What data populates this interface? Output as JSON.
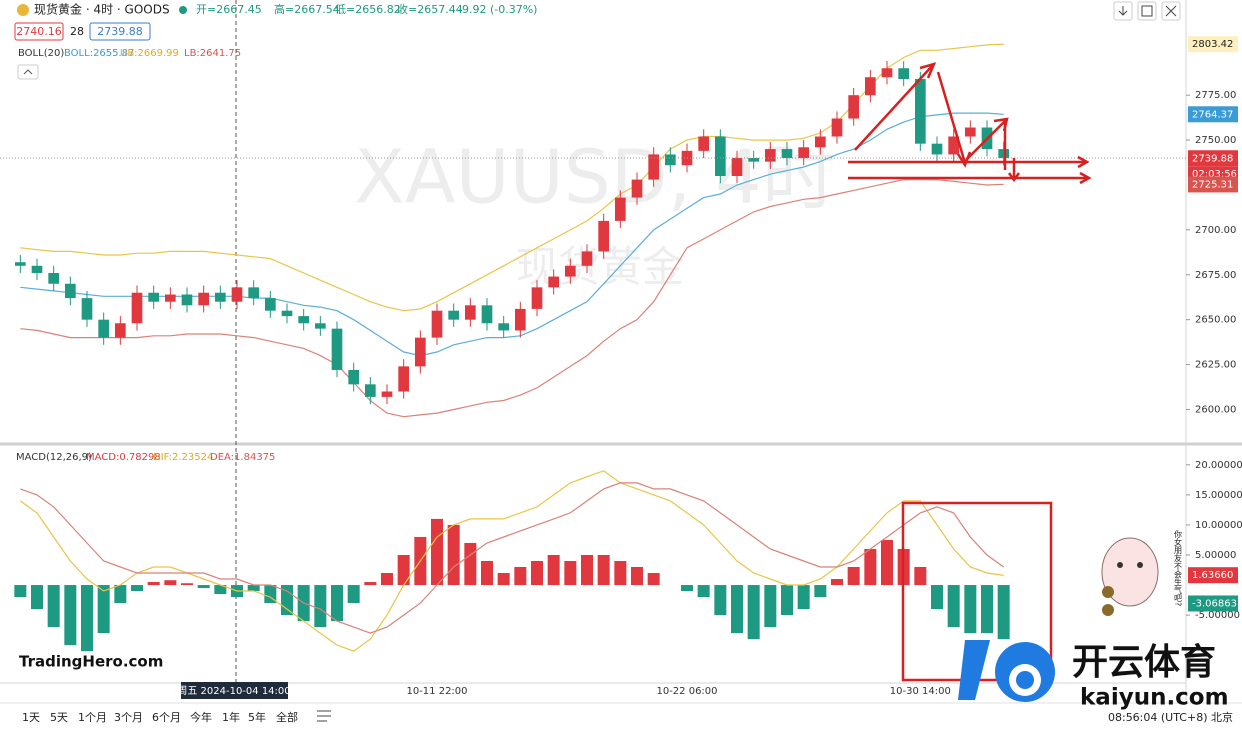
{
  "header": {
    "symbol": "现货黄金 · 4时 · GOODS",
    "ohlc": [
      "开=2667.45",
      "高=2667.54",
      "低=2656.82",
      "收=2657.44",
      "-9.92 (-0.37%)"
    ],
    "sell": "2740.16",
    "spread": "28",
    "buy": "2739.88"
  },
  "watermark": {
    "title": "XAUUSD, 4时",
    "subtitle": "现货黄金"
  },
  "price_legend": [
    {
      "text": "BOLL(20)",
      "color": "#333333"
    },
    {
      "text": "BOLL:2655.87",
      "color": "#3a9bd5"
    },
    {
      "text": "UB:2669.99",
      "color": "#e0a81e"
    },
    {
      "text": "LB:2641.75",
      "color": "#d9534f"
    }
  ],
  "macd_legend": [
    {
      "text": "MACD(12,26,9)",
      "color": "#333333"
    },
    {
      "text": "MACD:0.78298",
      "color": "#e0383e"
    },
    {
      "text": "DIF:2.23524",
      "color": "#e0a81e"
    },
    {
      "text": "DEA:1.84375",
      "color": "#d9534f"
    }
  ],
  "crosshair_label": "周五 2024-10-04 14:00",
  "logo": "TradingHero.com",
  "brand": {
    "name": "开云体育",
    "site": "kaiyun.com"
  },
  "sticker_text": "你女朋友不会生气吧?",
  "toolbar": {
    "ranges": [
      "1天",
      "5天",
      "1个月",
      "3个月",
      "6个月",
      "今年",
      "1年",
      "5年",
      "全部"
    ],
    "clock": "08:56:04 (UTC+8) 北京"
  },
  "chart_data": [
    {
      "type": "candlestick",
      "categories": [
        null,
        null,
        null,
        null,
        null,
        null,
        null,
        null,
        null,
        null,
        null,
        null,
        null,
        null,
        null,
        null,
        null,
        null,
        null,
        null,
        null,
        null,
        null,
        null,
        null,
        "10-11 22:00",
        null,
        null,
        null,
        null,
        null,
        null,
        null,
        null,
        null,
        null,
        null,
        null,
        null,
        null,
        "10-22 06:00",
        null,
        null,
        null,
        null,
        null,
        null,
        null,
        null,
        null,
        null,
        null,
        null,
        null,
        "10-30 14:00",
        null,
        null,
        null,
        null,
        null
      ],
      "open": [
        2682,
        2680,
        2676,
        2670,
        2662,
        2650,
        2640,
        2648,
        2665,
        2660,
        2664,
        2658,
        2665,
        2660,
        2668,
        2662,
        2655,
        2652,
        2648,
        2645,
        2622,
        2614,
        2607,
        2610,
        2624,
        2640,
        2655,
        2650,
        2658,
        2648,
        2644,
        2656,
        2668,
        2674,
        2680,
        2688,
        2705,
        2718,
        2728,
        2742,
        2736,
        2744,
        2752,
        2730,
        2740,
        2738,
        2745,
        2740,
        2746,
        2752,
        2762,
        2775,
        2785,
        2790,
        2784,
        2748,
        2742,
        2752,
        2757,
        2745
      ],
      "high": [
        2686,
        2684,
        2680,
        2674,
        2666,
        2654,
        2652,
        2669,
        2669,
        2668,
        2668,
        2669,
        2669,
        2672,
        2672,
        2666,
        2659,
        2656,
        2652,
        2649,
        2626,
        2618,
        2614,
        2628,
        2644,
        2659,
        2659,
        2662,
        2662,
        2652,
        2660,
        2672,
        2678,
        2684,
        2692,
        2709,
        2722,
        2732,
        2746,
        2746,
        2748,
        2756,
        2756,
        2744,
        2744,
        2749,
        2749,
        2750,
        2756,
        2766,
        2779,
        2789,
        2794,
        2794,
        2788,
        2752,
        2756,
        2761,
        2761,
        2749
      ],
      "low": [
        2676,
        2672,
        2666,
        2658,
        2646,
        2636,
        2636,
        2644,
        2656,
        2656,
        2654,
        2654,
        2656,
        2656,
        2658,
        2651,
        2648,
        2644,
        2641,
        2618,
        2610,
        2603,
        2603,
        2606,
        2620,
        2636,
        2646,
        2646,
        2644,
        2640,
        2640,
        2652,
        2664,
        2670,
        2676,
        2684,
        2701,
        2714,
        2724,
        2732,
        2732,
        2740,
        2726,
        2726,
        2734,
        2734,
        2736,
        2736,
        2742,
        2748,
        2758,
        2771,
        2781,
        2780,
        2744,
        2738,
        2738,
        2748,
        2741,
        2736
      ],
      "close": [
        2680,
        2676,
        2670,
        2662,
        2650,
        2640,
        2648,
        2665,
        2660,
        2664,
        2658,
        2665,
        2660,
        2668,
        2662,
        2655,
        2652,
        2648,
        2645,
        2622,
        2614,
        2607,
        2610,
        2624,
        2640,
        2655,
        2650,
        2658,
        2648,
        2644,
        2656,
        2668,
        2674,
        2680,
        2688,
        2705,
        2718,
        2728,
        2742,
        2736,
        2744,
        2752,
        2730,
        2740,
        2738,
        2745,
        2740,
        2746,
        2752,
        2762,
        2775,
        2785,
        2790,
        2784,
        2748,
        2742,
        2752,
        2757,
        2745,
        2740
      ],
      "color_up": "#e0383e",
      "color_down": "#1e9a82",
      "lines": [
        {
          "color": "#e8c547",
          "values": [
            2690,
            2689,
            2688,
            2688,
            2687,
            2686,
            2686,
            2687,
            2687,
            2688,
            2688,
            2688,
            2687,
            2686,
            2685,
            2684,
            2680,
            2676,
            2672,
            2668,
            2664,
            2660,
            2657,
            2655,
            2656,
            2660,
            2665,
            2670,
            2675,
            2680,
            2685,
            2690,
            2695,
            2700,
            2705,
            2712,
            2720,
            2725,
            2735,
            2745,
            2750,
            2752,
            2752,
            2751,
            2750,
            2750,
            2750,
            2751,
            2754,
            2760,
            2770,
            2780,
            2790,
            2796,
            2800,
            2800,
            2801,
            2802,
            2803,
            2803.42
          ]
        },
        {
          "color": "#5aaed8",
          "values": [
            2668,
            2667,
            2666,
            2665,
            2664,
            2663,
            2663,
            2663,
            2663,
            2663,
            2663,
            2663,
            2663,
            2663,
            2662,
            2662,
            2660,
            2658,
            2657,
            2655,
            2650,
            2644,
            2638,
            2632,
            2630,
            2632,
            2636,
            2638,
            2640,
            2640,
            2641,
            2645,
            2650,
            2655,
            2660,
            2670,
            2680,
            2690,
            2700,
            2706,
            2712,
            2718,
            2720,
            2725,
            2728,
            2731,
            2733,
            2735,
            2738,
            2742,
            2745,
            2750,
            2756,
            2760,
            2763,
            2764,
            2765,
            2765,
            2765,
            2764.37
          ]
        },
        {
          "color": "#d98278",
          "values": [
            2645,
            2644,
            2642,
            2640,
            2640,
            2640,
            2640,
            2640,
            2641,
            2641,
            2642,
            2642,
            2642,
            2641,
            2640,
            2638,
            2636,
            2634,
            2630,
            2625,
            2615,
            2605,
            2598,
            2596,
            2597,
            2598,
            2600,
            2602,
            2604,
            2605,
            2608,
            2612,
            2618,
            2624,
            2630,
            2638,
            2645,
            2650,
            2660,
            2675,
            2690,
            2695,
            2700,
            2705,
            2710,
            2713,
            2715,
            2717,
            2718,
            2720,
            2722,
            2724,
            2726,
            2728,
            2728,
            2728,
            2727,
            2726,
            2725,
            2725.31
          ]
        }
      ],
      "ylim": [
        2583,
        2828
      ],
      "yticks": [
        {
          "value": 2600,
          "label": "2600.00"
        },
        {
          "value": 2625,
          "label": "2625.00"
        },
        {
          "value": 2650,
          "label": "2650.00"
        },
        {
          "value": 2675,
          "label": "2675.00"
        },
        {
          "value": 2700,
          "label": "2700.00"
        },
        {
          "value": 2750,
          "label": "2750.00"
        },
        {
          "value": 2775,
          "label": "2775.00"
        }
      ],
      "tags": [
        {
          "value": 2803.42,
          "color": "#fdf0bf",
          "text_color": "#222222"
        },
        {
          "value": 2764.37,
          "color": "#3a9bd5",
          "text_color": "#ffffff"
        },
        {
          "value": 2739.88,
          "color": "#e0383e",
          "text_color": "#ffffff",
          "sub": "02:03:56"
        },
        {
          "value": 2725.31,
          "color": "#d9534f",
          "text_color": "#ffffff"
        }
      ],
      "grid": false
    },
    {
      "type": "macd",
      "values": [
        -2,
        -4,
        -7,
        -10,
        -11,
        -8,
        -3,
        -1,
        0.5,
        0.8,
        0.3,
        -0.5,
        -1.5,
        -2,
        -1,
        -3,
        -5,
        -6,
        -7,
        -6,
        -3,
        0.5,
        2,
        5,
        8,
        11,
        10,
        7,
        4,
        2,
        3,
        4,
        5,
        4,
        5,
        5,
        4,
        3,
        2,
        0,
        -1,
        -2,
        -5,
        -8,
        -9,
        -7,
        -5,
        -4,
        -2,
        1,
        3,
        6,
        7.5,
        6,
        3,
        -4,
        -7,
        -8,
        -8,
        -9
      ],
      "color_up": "#e0383e",
      "color_down": "#1e9a82",
      "lines": [
        {
          "color": "#e8c547",
          "values": [
            14,
            12,
            8,
            4,
            1,
            -1,
            0,
            2,
            3,
            3,
            2,
            1,
            0,
            -1,
            -1,
            -2,
            -4,
            -6,
            -8,
            -10,
            -11,
            -9,
            -5,
            0,
            4,
            8,
            10,
            11,
            11,
            11,
            12,
            13,
            15,
            17,
            18,
            19,
            17,
            16,
            15,
            14,
            12,
            10,
            7,
            4,
            2,
            1,
            0,
            0,
            1,
            3,
            6,
            9,
            12,
            14,
            14,
            10,
            6,
            3,
            2,
            1.6
          ]
        },
        {
          "color": "#d98278",
          "values": [
            16,
            15,
            13,
            10,
            7,
            4,
            3,
            2,
            2,
            2,
            2,
            2,
            1,
            1,
            0,
            0,
            -1,
            -3,
            -4,
            -6,
            -7,
            -8,
            -7,
            -5,
            -3,
            0,
            3,
            5,
            7,
            8,
            9,
            10,
            11,
            12,
            14,
            16,
            17,
            17,
            16,
            16,
            15,
            14,
            12,
            10,
            8,
            6,
            5,
            4,
            3,
            3,
            4,
            6,
            8,
            10,
            12,
            13,
            12,
            8,
            5,
            3
          ]
        }
      ],
      "ylim": [
        -16.3,
        22.8
      ],
      "yticks": [
        {
          "value": 20,
          "label": "20.00000"
        },
        {
          "value": 15,
          "label": "15.00000"
        },
        {
          "value": 10,
          "label": "10.00000"
        },
        {
          "value": 5,
          "label": "5.00000"
        },
        {
          "value": -5,
          "label": "-5.00000"
        }
      ],
      "tags": [
        {
          "value": 1.6366,
          "label": "1.63660",
          "color": "#e0383e",
          "text_color": "#ffffff"
        },
        {
          "value": -3.06863,
          "label": "-3.06863",
          "color": "#1e9a82",
          "text_color": "#ffffff"
        }
      ],
      "grid": false
    }
  ]
}
